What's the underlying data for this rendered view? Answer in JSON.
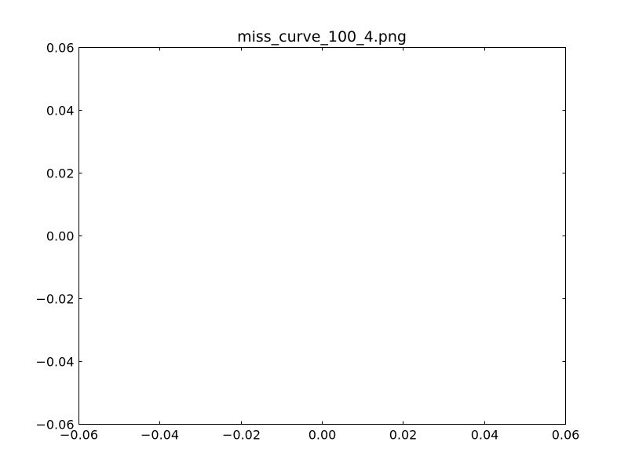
{
  "chart_data": {
    "type": "line",
    "title": "miss_curve_100_4.png",
    "xlabel": "",
    "ylabel": "",
    "series": [],
    "xlim": [
      -0.06,
      0.06
    ],
    "ylim": [
      -0.06,
      0.06
    ],
    "x_ticks": [
      -0.06,
      -0.04,
      -0.02,
      0.0,
      0.02,
      0.04,
      0.06
    ],
    "y_ticks": [
      -0.06,
      -0.04,
      -0.02,
      0.0,
      0.02,
      0.04,
      0.06
    ],
    "x_tick_labels": [
      "−0.06",
      "−0.04",
      "−0.02",
      "0.00",
      "0.02",
      "0.04",
      "0.06"
    ],
    "y_tick_labels": [
      "−0.06",
      "−0.04",
      "−0.02",
      "0.00",
      "0.02",
      "0.04",
      "0.06"
    ],
    "grid": false,
    "legend": "none",
    "colors": {
      "background": "#ffffff",
      "axes": "#000000",
      "text": "#000000"
    }
  }
}
